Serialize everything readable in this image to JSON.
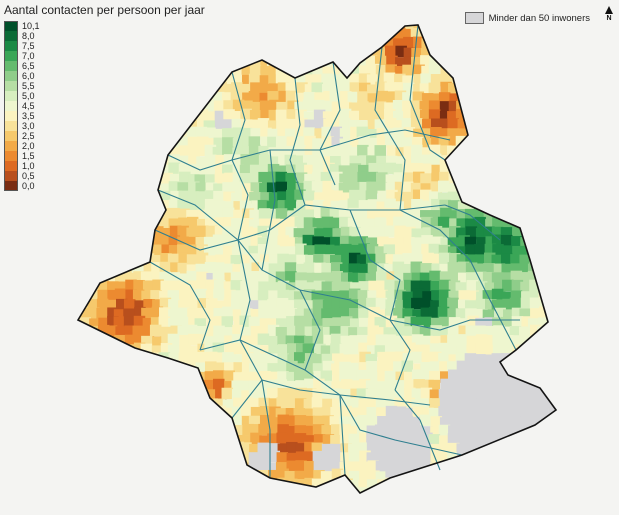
{
  "legend": {
    "title": "Aantal contacten per persoon per jaar",
    "classes": [
      {
        "label": "10,1",
        "color": "#00502a"
      },
      {
        "label": "8,0",
        "color": "#0b6b36"
      },
      {
        "label": "7,5",
        "color": "#1b8a45"
      },
      {
        "label": "7,0",
        "color": "#3aa657"
      },
      {
        "label": "6,5",
        "color": "#64bb6e"
      },
      {
        "label": "6,0",
        "color": "#8fcd8a"
      },
      {
        "label": "5,5",
        "color": "#b6dea4"
      },
      {
        "label": "5,0",
        "color": "#d7eebf"
      },
      {
        "label": "4,5",
        "color": "#eef6cf"
      },
      {
        "label": "3,5",
        "color": "#fbf3c0"
      },
      {
        "label": "3,0",
        "color": "#f8e29a"
      },
      {
        "label": "2,5",
        "color": "#f6c96c"
      },
      {
        "label": "2,0",
        "color": "#f2aa48"
      },
      {
        "label": "1,5",
        "color": "#ec8a30"
      },
      {
        "label": "1,0",
        "color": "#dd6a22"
      },
      {
        "label": "0,5",
        "color": "#b84f1d"
      },
      {
        "label": "0,0",
        "color": "#7a2d12"
      }
    ]
  },
  "no_data": {
    "label": "Minder dan 50 inwoners",
    "color": "#d6d6d8"
  },
  "north_arrow": {
    "label": "N"
  },
  "colors": {
    "background": "#f4f4f2",
    "boundary": "#141414",
    "commune_border": "#2f7f8f"
  }
}
